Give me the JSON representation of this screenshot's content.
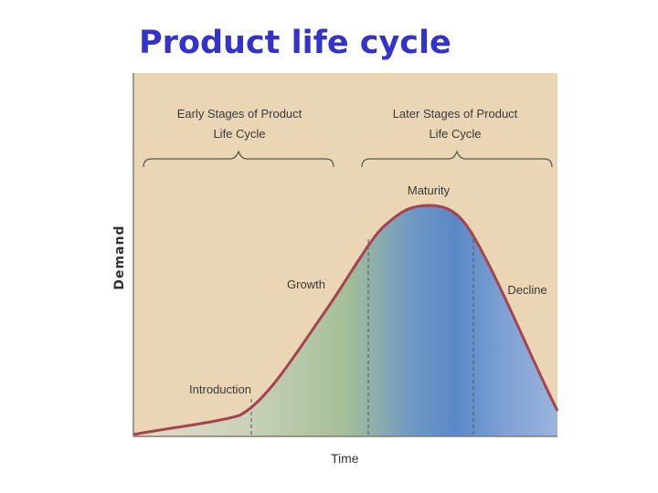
{
  "title": "Product life cycle",
  "y_axis_label": "Demand",
  "x_axis_label": "Time",
  "brackets": {
    "early": {
      "line1": "Early Stages of Product",
      "line2": "Life Cycle"
    },
    "later": {
      "line1": "Later Stages of Product",
      "line2": "Life Cycle"
    }
  },
  "stages": {
    "introduction": "Introduction",
    "growth": "Growth",
    "maturity": "Maturity",
    "decline": "Decline"
  },
  "colors": {
    "title": "#3333cc",
    "background": "#ead6b4",
    "curve": "#a6434f",
    "fill_intro": "#d6d9bf",
    "fill_growth": "#a9c1a0",
    "fill_maturity": "#5b89c8",
    "fill_decline": "#8aa8d8"
  }
}
